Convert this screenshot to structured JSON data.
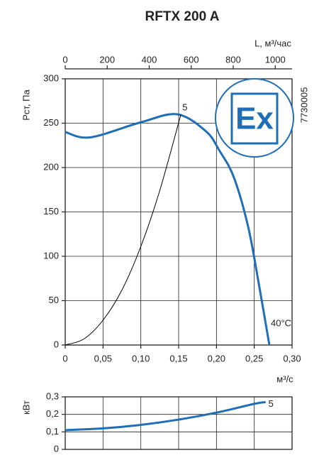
{
  "chart_data": [
    {
      "type": "line",
      "title": "RFTX 200 A",
      "x_label": "м³/с",
      "y_label": "Рст, Па",
      "x2_label": "L, м³/час",
      "code": "7730005",
      "logo": "Ex",
      "annotation": "5",
      "xlim": [
        0,
        0.3
      ],
      "xticks": [
        0,
        {
          "value": 0.05,
          "label": "0,05"
        },
        {
          "value": 0.1,
          "label": "0,10"
        },
        {
          "value": 0.15,
          "label": "0,15"
        },
        {
          "value": 0.2,
          "label": "0,20"
        },
        {
          "value": 0.25,
          "label": "0,25"
        },
        {
          "value": 0.3,
          "label": "0,30"
        }
      ],
      "x2lim": [
        0,
        1080
      ],
      "x2ticks": [
        0,
        200,
        400,
        600,
        800,
        1000
      ],
      "ylim": [
        0,
        300
      ],
      "yticks": [
        0,
        50,
        100,
        150,
        200,
        250,
        300
      ],
      "grid": true,
      "series": [
        {
          "name": "40°C",
          "color": "#1f6fb8",
          "x": [
            0,
            0.033,
            0.1,
            0.148,
            0.186,
            0.204,
            0.223,
            0.242,
            0.256,
            0.27
          ],
          "values": [
            240,
            234,
            251,
            260,
            241,
            219,
            189,
            133,
            69,
            0
          ]
        },
        {
          "color": "#000000",
          "x": [
            0,
            0.025,
            0.05,
            0.075,
            0.1,
            0.125,
            0.153
          ],
          "values": [
            0,
            7,
            28,
            62,
            111,
            174,
            260
          ]
        }
      ]
    },
    {
      "type": "line",
      "y_label": "кВт",
      "annotation": "5",
      "xlim": [
        0,
        0.3
      ],
      "xticks": [
        0,
        0.05,
        0.1,
        0.15,
        0.2,
        0.25,
        0.3
      ],
      "ylim": [
        0,
        0.3
      ],
      "yticks": [
        0,
        {
          "value": 0.1,
          "label": "0,1"
        },
        {
          "value": 0.2,
          "label": "0,2"
        },
        {
          "value": 0.3,
          "label": "0,3"
        }
      ],
      "grid": true,
      "series": [
        {
          "color": "#1f6fb8",
          "x": [
            0,
            0.05,
            0.1,
            0.15,
            0.2,
            0.25,
            0.265
          ],
          "values": [
            0.11,
            0.12,
            0.14,
            0.17,
            0.21,
            0.26,
            0.27
          ]
        }
      ]
    }
  ]
}
